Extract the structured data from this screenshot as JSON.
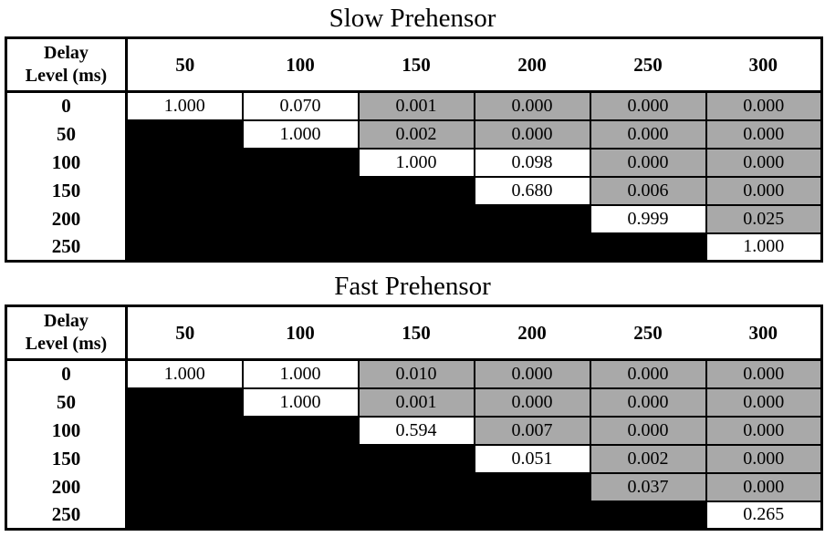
{
  "colors": {
    "cell_white": "#ffffff",
    "cell_gray": "#a9a9a9",
    "cell_black": "#000000",
    "border": "#000000",
    "text": "#000000"
  },
  "tables": [
    {
      "title": "Slow Prehensor",
      "corner": {
        "line1": "Delay",
        "line2": "Level (ms)"
      },
      "col_headers": [
        "50",
        "100",
        "150",
        "200",
        "250",
        "300"
      ],
      "rows": [
        {
          "label": "0",
          "cells": [
            {
              "v": "1.000",
              "bg": "white"
            },
            {
              "v": "0.070",
              "bg": "white"
            },
            {
              "v": "0.001",
              "bg": "gray"
            },
            {
              "v": "0.000",
              "bg": "gray"
            },
            {
              "v": "0.000",
              "bg": "gray"
            },
            {
              "v": "0.000",
              "bg": "gray"
            }
          ]
        },
        {
          "label": "50",
          "cells": [
            {
              "v": "",
              "bg": "black"
            },
            {
              "v": "1.000",
              "bg": "white"
            },
            {
              "v": "0.002",
              "bg": "gray"
            },
            {
              "v": "0.000",
              "bg": "gray"
            },
            {
              "v": "0.000",
              "bg": "gray"
            },
            {
              "v": "0.000",
              "bg": "gray"
            }
          ]
        },
        {
          "label": "100",
          "cells": [
            {
              "v": "",
              "bg": "black"
            },
            {
              "v": "",
              "bg": "black"
            },
            {
              "v": "1.000",
              "bg": "white"
            },
            {
              "v": "0.098",
              "bg": "white"
            },
            {
              "v": "0.000",
              "bg": "gray"
            },
            {
              "v": "0.000",
              "bg": "gray"
            }
          ]
        },
        {
          "label": "150",
          "cells": [
            {
              "v": "",
              "bg": "black"
            },
            {
              "v": "",
              "bg": "black"
            },
            {
              "v": "",
              "bg": "black"
            },
            {
              "v": "0.680",
              "bg": "white"
            },
            {
              "v": "0.006",
              "bg": "gray"
            },
            {
              "v": "0.000",
              "bg": "gray"
            }
          ]
        },
        {
          "label": "200",
          "cells": [
            {
              "v": "",
              "bg": "black"
            },
            {
              "v": "",
              "bg": "black"
            },
            {
              "v": "",
              "bg": "black"
            },
            {
              "v": "",
              "bg": "black"
            },
            {
              "v": "0.999",
              "bg": "white"
            },
            {
              "v": "0.025",
              "bg": "gray"
            }
          ]
        },
        {
          "label": "250",
          "cells": [
            {
              "v": "",
              "bg": "black"
            },
            {
              "v": "",
              "bg": "black"
            },
            {
              "v": "",
              "bg": "black"
            },
            {
              "v": "",
              "bg": "black"
            },
            {
              "v": "",
              "bg": "black"
            },
            {
              "v": "1.000",
              "bg": "white"
            }
          ]
        }
      ]
    },
    {
      "title": "Fast Prehensor",
      "corner": {
        "line1": "Delay",
        "line2": "Level (ms)"
      },
      "col_headers": [
        "50",
        "100",
        "150",
        "200",
        "250",
        "300"
      ],
      "rows": [
        {
          "label": "0",
          "cells": [
            {
              "v": "1.000",
              "bg": "white"
            },
            {
              "v": "1.000",
              "bg": "white"
            },
            {
              "v": "0.010",
              "bg": "gray"
            },
            {
              "v": "0.000",
              "bg": "gray"
            },
            {
              "v": "0.000",
              "bg": "gray"
            },
            {
              "v": "0.000",
              "bg": "gray"
            }
          ]
        },
        {
          "label": "50",
          "cells": [
            {
              "v": "",
              "bg": "black"
            },
            {
              "v": "1.000",
              "bg": "white"
            },
            {
              "v": "0.001",
              "bg": "gray"
            },
            {
              "v": "0.000",
              "bg": "gray"
            },
            {
              "v": "0.000",
              "bg": "gray"
            },
            {
              "v": "0.000",
              "bg": "gray"
            }
          ]
        },
        {
          "label": "100",
          "cells": [
            {
              "v": "",
              "bg": "black"
            },
            {
              "v": "",
              "bg": "black"
            },
            {
              "v": "0.594",
              "bg": "white"
            },
            {
              "v": "0.007",
              "bg": "gray"
            },
            {
              "v": "0.000",
              "bg": "gray"
            },
            {
              "v": "0.000",
              "bg": "gray"
            }
          ]
        },
        {
          "label": "150",
          "cells": [
            {
              "v": "",
              "bg": "black"
            },
            {
              "v": "",
              "bg": "black"
            },
            {
              "v": "",
              "bg": "black"
            },
            {
              "v": "0.051",
              "bg": "white"
            },
            {
              "v": "0.002",
              "bg": "gray"
            },
            {
              "v": "0.000",
              "bg": "gray"
            }
          ]
        },
        {
          "label": "200",
          "cells": [
            {
              "v": "",
              "bg": "black"
            },
            {
              "v": "",
              "bg": "black"
            },
            {
              "v": "",
              "bg": "black"
            },
            {
              "v": "",
              "bg": "black"
            },
            {
              "v": "0.037",
              "bg": "gray"
            },
            {
              "v": "0.000",
              "bg": "gray"
            }
          ]
        },
        {
          "label": "250",
          "cells": [
            {
              "v": "",
              "bg": "black"
            },
            {
              "v": "",
              "bg": "black"
            },
            {
              "v": "",
              "bg": "black"
            },
            {
              "v": "",
              "bg": "black"
            },
            {
              "v": "",
              "bg": "black"
            },
            {
              "v": "0.265",
              "bg": "white"
            }
          ]
        }
      ]
    }
  ]
}
